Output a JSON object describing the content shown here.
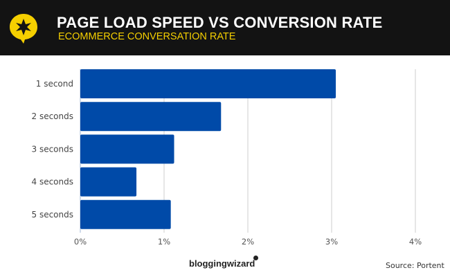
{
  "header": {
    "title": "PAGE LOAD SPEED VS CONVERSION RATE",
    "subtitle": "ECOMMERCE CONVERSATION RATE",
    "logo_icon": "star-speech-bubble-icon"
  },
  "footer": {
    "brand": "bloggingwizard",
    "source": "Source: Portent"
  },
  "colors": {
    "bar": "#004aa8",
    "header_bg": "#131313",
    "subtitle": "#f5cf00",
    "accent": "#f5cf00"
  },
  "chart_data": {
    "type": "bar",
    "orientation": "horizontal",
    "categories": [
      "1 second",
      "2 seconds",
      "3 seconds",
      "4 seconds",
      "5 seconds"
    ],
    "values": [
      3.05,
      1.68,
      1.12,
      0.67,
      1.08
    ],
    "unit": "%",
    "xlim": [
      0,
      4
    ],
    "xticks": [
      "0%",
      "1%",
      "2%",
      "3%",
      "4%"
    ],
    "grid": true
  }
}
